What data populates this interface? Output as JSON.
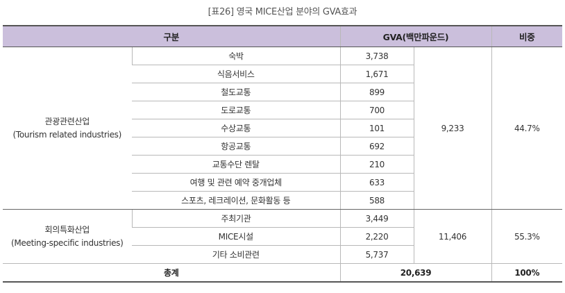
{
  "caption": "[표26] 영국 MICE산업 분야의 GVA효과",
  "headers": {
    "category": "구분",
    "gva": "GVA(백만파운드)",
    "share": "비중"
  },
  "groups": [
    {
      "name_ko": "관광관련산업",
      "name_en": "(Tourism related industries)",
      "subtotal": "9,233",
      "share": "44.7%",
      "items": [
        {
          "name": "숙박",
          "gva": "3,738"
        },
        {
          "name": "식음서비스",
          "gva": "1,671"
        },
        {
          "name": "철도교통",
          "gva": "899"
        },
        {
          "name": "도로교통",
          "gva": "700"
        },
        {
          "name": "수상교통",
          "gva": "101"
        },
        {
          "name": "항공교통",
          "gva": "692"
        },
        {
          "name": "교통수단 렌탈",
          "gva": "210"
        },
        {
          "name": "여행 및 관련 예약 중개업체",
          "gva": "633"
        },
        {
          "name": "스포츠, 레크레이션, 문화활동 등",
          "gva": "588"
        }
      ]
    },
    {
      "name_ko": "회의특화산업",
      "name_en": "(Meeting-specific industries)",
      "subtotal": "11,406",
      "share": "55.3%",
      "items": [
        {
          "name": "주최기관",
          "gva": "3,449"
        },
        {
          "name": "MICE시설",
          "gva": "2,220"
        },
        {
          "name": "기타 소비관련",
          "gva": "5,737"
        }
      ]
    }
  ],
  "total": {
    "label": "총계",
    "gva": "20,639",
    "share": "100%"
  }
}
